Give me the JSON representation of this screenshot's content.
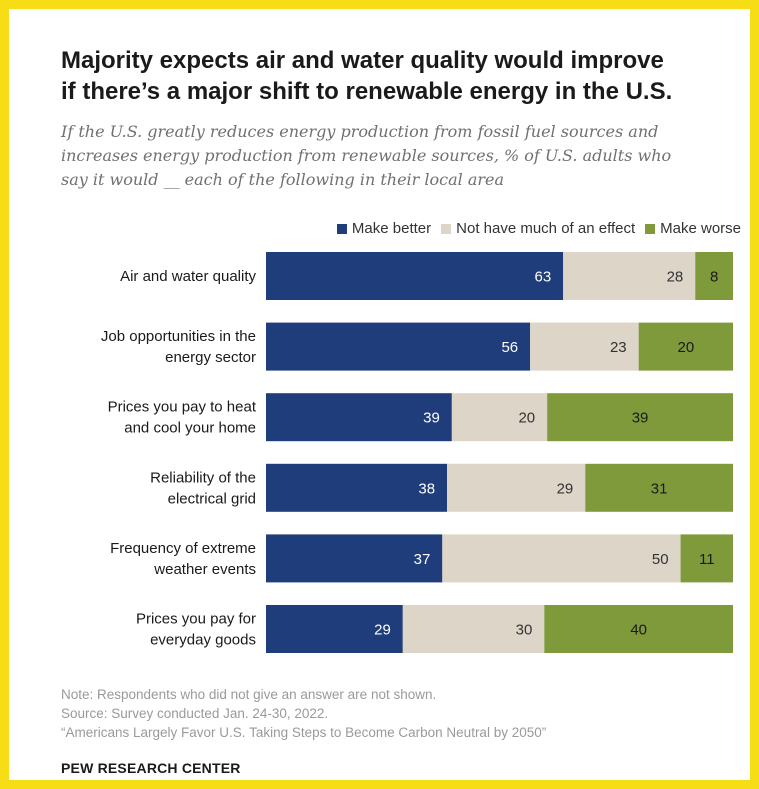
{
  "title_line1": "Majority expects air and water quality would improve",
  "title_line2": "if there’s a major shift to renewable energy in the U.S.",
  "subtitle_line1": "If the U.S. greatly reduces energy production from fossil fuel sources and",
  "subtitle_line2": "increases energy production from renewable sources, % of U.S. adults who",
  "subtitle_line3": "say it would __ each of the following in their local area",
  "colors": {
    "make_better": "#1f3d7a",
    "no_effect": "#dcd5c8",
    "make_worse": "#7f9a3b",
    "frame": "#f7dd16"
  },
  "chart_data": {
    "type": "bar",
    "orientation": "horizontal",
    "stacked": true,
    "legend_position": "top-right",
    "grid": false,
    "categories": [
      [
        "Air and water quality"
      ],
      [
        "Job opportunities in the",
        "energy sector"
      ],
      [
        "Prices you pay to heat",
        "and cool your home"
      ],
      [
        "Reliability of the",
        "electrical grid"
      ],
      [
        "Frequency of extreme",
        "weather events"
      ],
      [
        "Prices you pay for",
        "everyday goods"
      ]
    ],
    "series": [
      {
        "name": "Make better",
        "values": [
          63,
          56,
          39,
          38,
          37,
          29
        ]
      },
      {
        "name": "Not have much of an effect",
        "values": [
          28,
          23,
          20,
          29,
          50,
          30
        ]
      },
      {
        "name": "Make worse",
        "values": [
          8,
          20,
          39,
          31,
          11,
          40
        ]
      }
    ]
  },
  "notes": {
    "note": "Note: Respondents who did not give an answer are not shown.",
    "source": "Source: Survey conducted Jan. 24-30, 2022.",
    "report": "“Americans Largely Favor U.S. Taking Steps to Become Carbon Neutral by 2050”"
  },
  "brand": "PEW RESEARCH CENTER"
}
